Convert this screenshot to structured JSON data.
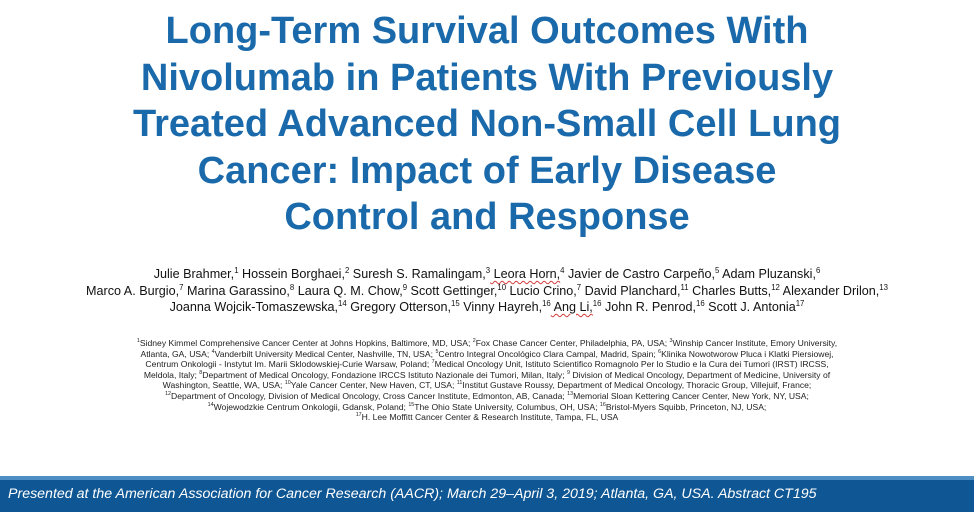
{
  "colors": {
    "title": "#1a6aab",
    "footer_bg": "#0f5794",
    "footer_rule": "#4d8fc4",
    "footer_text": "#ffffff"
  },
  "title_lines": [
    "Long-Term Survival Outcomes With",
    "Nivolumab in Patients With Previously",
    "Treated Advanced Non-Small Cell Lung",
    "Cancer: Impact of Early Disease",
    "Control and Response"
  ],
  "authors": {
    "line1": [
      {
        "name": "Julie Brahmer,",
        "sup": "1"
      },
      {
        "name": " Hossein Borghaei,",
        "sup": "2"
      },
      {
        "name": " Suresh S. Ramalingam,",
        "sup": "3"
      },
      {
        "name": " Leora Horn,",
        "sup": "4"
      },
      {
        "name": " Javier de Castro Carpeño,",
        "sup": "5"
      },
      {
        "name": " Adam Pluzanski,",
        "sup": "6"
      }
    ],
    "line2": [
      {
        "name": "Marco A. Burgio,",
        "sup": "7"
      },
      {
        "name": " Marina Garassino,",
        "sup": "8"
      },
      {
        "name": " Laura Q. M. Chow,",
        "sup": "9"
      },
      {
        "name": " Scott Gettinger,",
        "sup": "10"
      },
      {
        "name": " Lucio Crino,",
        "sup": "7"
      },
      {
        "name": " David Planchard,",
        "sup": "11"
      },
      {
        "name": " Charles Butts,",
        "sup": "12"
      },
      {
        "name": " Alexander Drilon,",
        "sup": "13"
      }
    ],
    "line3": [
      {
        "name": "Joanna Wojcik-Tomaszewska,",
        "sup": "14"
      },
      {
        "name": " Gregory Otterson,",
        "sup": "15"
      },
      {
        "name": " Vinny Hayreh,",
        "sup": "16"
      },
      {
        "name": " Ang Li,",
        "sup": "16"
      },
      {
        "name": " John R. Penrod,",
        "sup": "16"
      },
      {
        "name": " Scott J. Antonia",
        "sup": "17"
      }
    ]
  },
  "affiliations": {
    "l1": [
      {
        "sup": "1",
        "text": "Sidney Kimmel Comprehensive Cancer Center at Johns Hopkins, Baltimore, MD, USA; "
      },
      {
        "sup": "2",
        "text": "Fox Chase Cancer Center, Philadelphia, PA, USA; "
      },
      {
        "sup": "3",
        "text": "Winship Cancer Institute, Emory University,"
      }
    ],
    "l2": [
      {
        "sup": "",
        "text": "Atlanta, GA, USA; "
      },
      {
        "sup": "4",
        "text": "Vanderbilt University Medical Center, Nashville, TN, USA; "
      },
      {
        "sup": "5",
        "text": "Centro Integral Oncológico Clara Campal, Madrid, Spain; "
      },
      {
        "sup": "6",
        "text": "Klinika Nowotworow Pluca i Klatki Piersiowej,"
      }
    ],
    "l3": [
      {
        "sup": "",
        "text": "Centrum Onkologii - Instytut Im. Marii Sklodowskiej-Curie Warsaw, Poland; "
      },
      {
        "sup": "7",
        "text": "Medical Oncology Unit, Istituto Scientifico Romagnolo Per lo Studio e la Cura dei Tumori (IRST) IRCSS,"
      }
    ],
    "l4": [
      {
        "sup": "",
        "text": "Meldola, Italy; "
      },
      {
        "sup": "8",
        "text": "Department of Medical Oncology, Fondazione IRCCS Istituto Nazionale dei Tumori, Milan, Italy; "
      },
      {
        "sup": "9",
        "text": " Division of Medical Oncology, Department of Medicine, University of"
      }
    ],
    "l5": [
      {
        "sup": "",
        "text": "Washington, Seattle, WA, USA; "
      },
      {
        "sup": "10",
        "text": "Yale Cancer Center, New Haven, CT, USA; "
      },
      {
        "sup": "11",
        "text": "Institut Gustave Roussy, Department of Medical Oncology, Thoracic Group, Villejuif, France;"
      }
    ],
    "l6": [
      {
        "sup": "12",
        "text": "Department of Oncology, Division of Medical Oncology, Cross Cancer Institute, Edmonton, AB, Canada; "
      },
      {
        "sup": "13",
        "text": "Memorial Sloan Kettering Cancer Center, New York, NY, USA;"
      }
    ],
    "l7": [
      {
        "sup": "14",
        "text": "Wojewodzkie Centrum Onkologii, Gdansk, Poland; "
      },
      {
        "sup": "15",
        "text": "The Ohio State University, Columbus, OH, USA; "
      },
      {
        "sup": "16",
        "text": "Bristol-Myers Squibb, Princeton, NJ, USA;"
      }
    ],
    "l8": [
      {
        "sup": "17",
        "text": "H. Lee Moffitt Cancer Center & Research Institute, Tampa, FL, USA"
      }
    ]
  },
  "footer": {
    "text": "Presented at the American Association for Cancer Research (AACR); March 29–April 3, 2019; Atlanta, GA, USA. Abstract CT195"
  }
}
